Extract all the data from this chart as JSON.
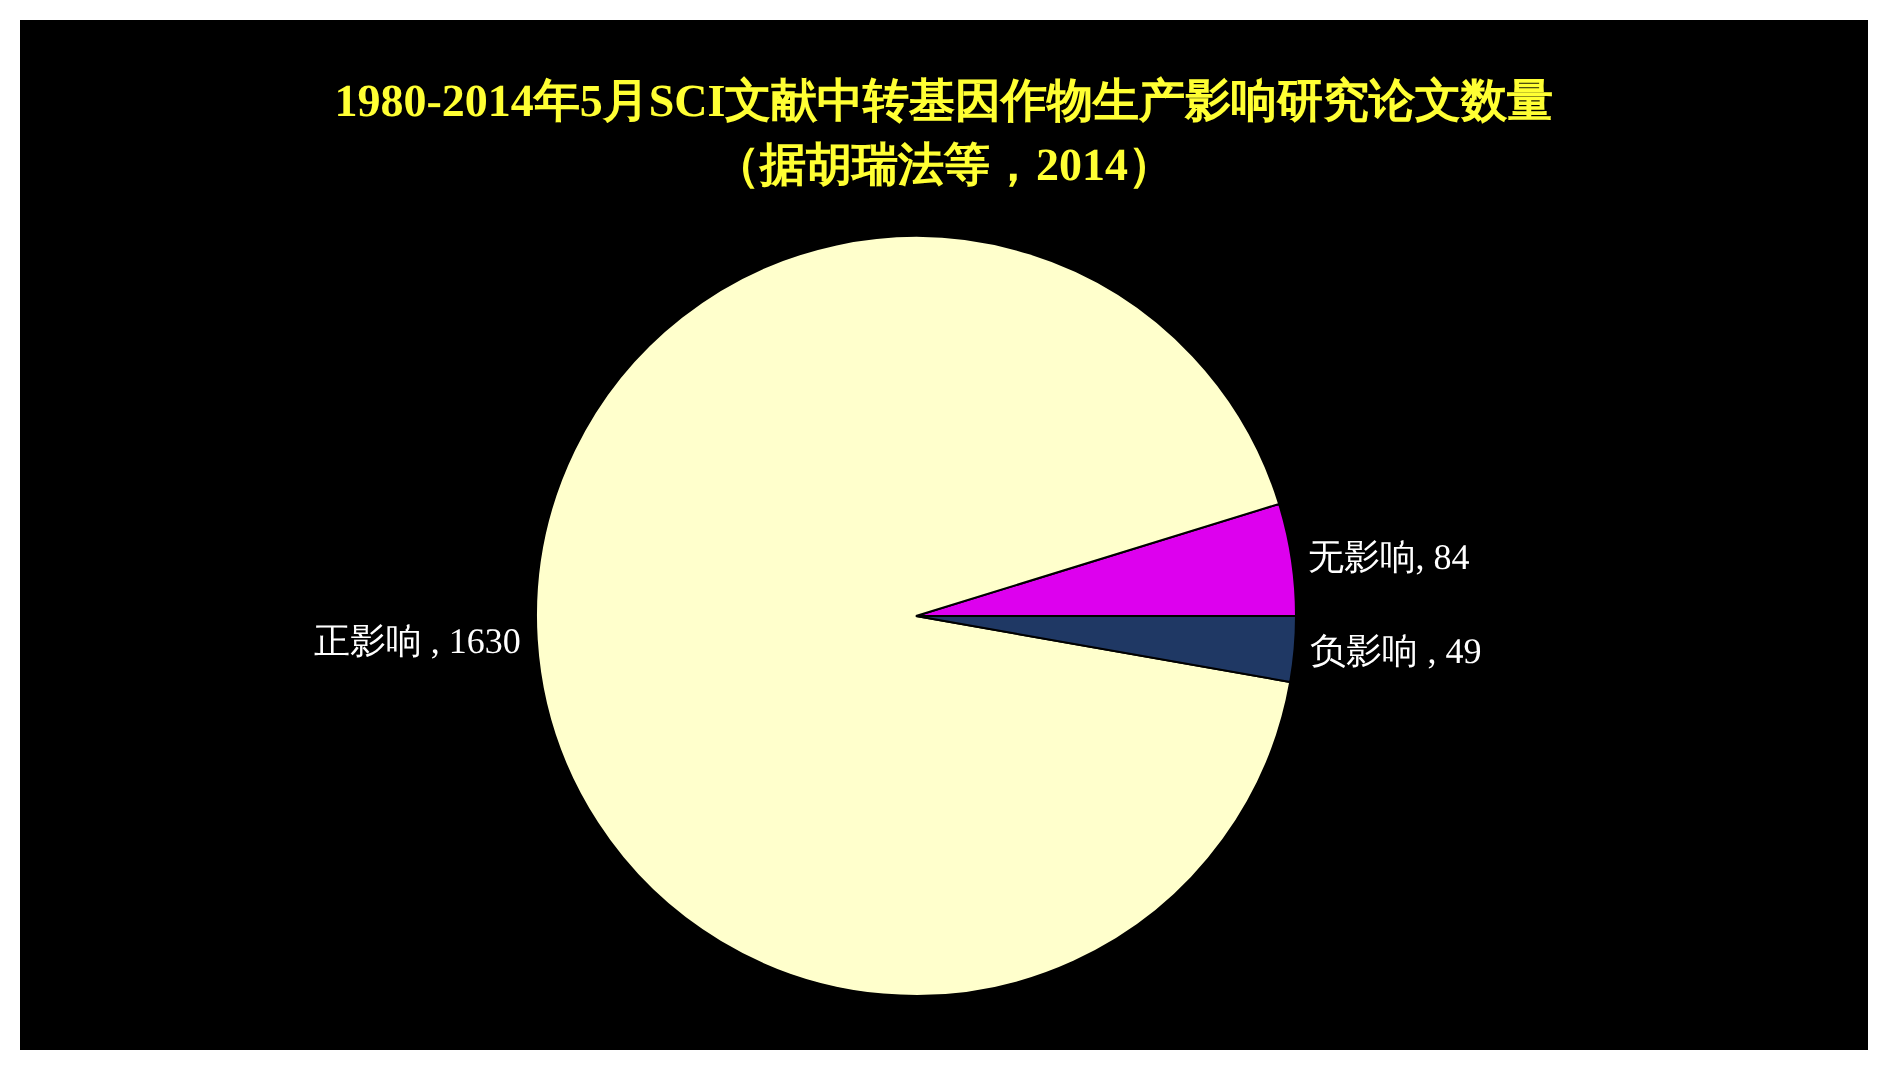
{
  "chart_data": {
    "type": "pie",
    "title": "1980-2014年5月SCI文献中转基因作物生产影响研究论文数量",
    "subtitle": "（据胡瑞法等，2014）",
    "categories": [
      "无影响",
      "正影响",
      "负影响"
    ],
    "values": [
      84,
      1630,
      49
    ],
    "colors": [
      "#dd00ee",
      "#ffffcc",
      "#1f3864"
    ],
    "value_labels": [
      ", 84",
      " , 1630",
      " , 49"
    ],
    "legend": false
  }
}
